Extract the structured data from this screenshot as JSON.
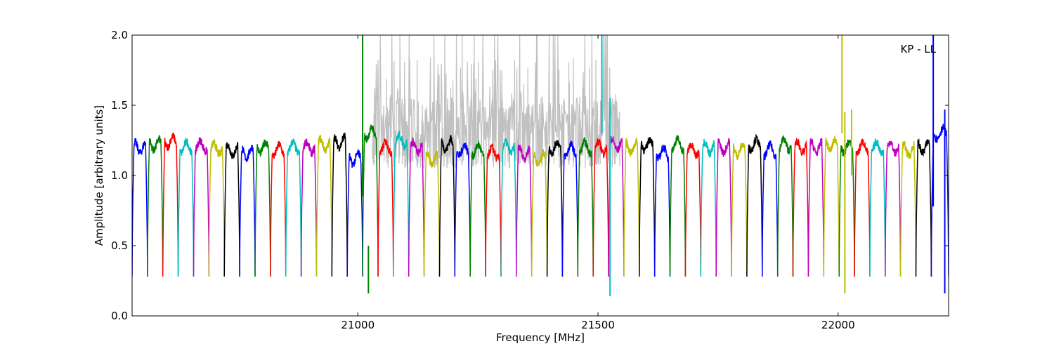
{
  "chart_data": {
    "type": "line",
    "title": "",
    "annotation": "KP - LL",
    "xlabel": "Frequency [MHz]",
    "ylabel": "Amplitude [arbitrary units]",
    "xlim": [
      20530,
      22230
    ],
    "ylim": [
      0.0,
      2.0
    ],
    "x_ticks": [
      21000,
      21500,
      22000
    ],
    "x_tick_labels": [
      "21000",
      "21500",
      "22000"
    ],
    "y_ticks": [
      0.0,
      0.5,
      1.0,
      1.5,
      2.0
    ],
    "y_tick_labels": [
      "0.0",
      "0.5",
      "1.0",
      "1.5",
      "2.0"
    ],
    "grid": false,
    "legend": "none",
    "series_colors": [
      "#0000ff",
      "#008000",
      "#ff0000",
      "#00bfbf",
      "#bf00bf",
      "#bfbf00",
      "#000000"
    ],
    "background_series_color": "#c0c0c0",
    "channel_width_mhz": 32,
    "channel_edge_value": 0.28,
    "channels": [
      {
        "x_start": 20530,
        "x_end": 20562,
        "plateau": 1.2,
        "color": "#0000ff"
      },
      {
        "x_start": 20562,
        "x_end": 20594,
        "plateau": 1.22,
        "color": "#008000"
      },
      {
        "x_start": 20594,
        "x_end": 20626,
        "plateau": 1.24,
        "color": "#ff0000"
      },
      {
        "x_start": 20626,
        "x_end": 20658,
        "plateau": 1.2,
        "color": "#00bfbf"
      },
      {
        "x_start": 20658,
        "x_end": 20690,
        "plateau": 1.21,
        "color": "#bf00bf"
      },
      {
        "x_start": 20690,
        "x_end": 20722,
        "plateau": 1.19,
        "color": "#bfbf00"
      },
      {
        "x_start": 20722,
        "x_end": 20754,
        "plateau": 1.18,
        "color": "#000000"
      },
      {
        "x_start": 20754,
        "x_end": 20786,
        "plateau": 1.16,
        "color": "#0000ff"
      },
      {
        "x_start": 20786,
        "x_end": 20818,
        "plateau": 1.2,
        "color": "#008000"
      },
      {
        "x_start": 20818,
        "x_end": 20850,
        "plateau": 1.18,
        "color": "#ff0000"
      },
      {
        "x_start": 20850,
        "x_end": 20882,
        "plateau": 1.2,
        "color": "#00bfbf"
      },
      {
        "x_start": 20882,
        "x_end": 20914,
        "plateau": 1.2,
        "color": "#bf00bf"
      },
      {
        "x_start": 20914,
        "x_end": 20946,
        "plateau": 1.22,
        "color": "#bfbf00"
      },
      {
        "x_start": 20946,
        "x_end": 20978,
        "plateau": 1.24,
        "color": "#000000"
      },
      {
        "x_start": 20978,
        "x_end": 21010,
        "plateau": 1.12,
        "color": "#0000ff"
      },
      {
        "x_start": 21010,
        "x_end": 21042,
        "plateau": 1.3,
        "color": "#008000"
      },
      {
        "x_start": 21042,
        "x_end": 21074,
        "plateau": 1.2,
        "color": "#ff0000"
      },
      {
        "x_start": 21074,
        "x_end": 21106,
        "plateau": 1.25,
        "color": "#00bfbf"
      },
      {
        "x_start": 21106,
        "x_end": 21138,
        "plateau": 1.2,
        "color": "#bf00bf"
      },
      {
        "x_start": 21138,
        "x_end": 21170,
        "plateau": 1.12,
        "color": "#bfbf00"
      },
      {
        "x_start": 21170,
        "x_end": 21202,
        "plateau": 1.22,
        "color": "#000000"
      },
      {
        "x_start": 21202,
        "x_end": 21234,
        "plateau": 1.18,
        "color": "#0000ff"
      },
      {
        "x_start": 21234,
        "x_end": 21266,
        "plateau": 1.18,
        "color": "#008000"
      },
      {
        "x_start": 21266,
        "x_end": 21298,
        "plateau": 1.16,
        "color": "#ff0000"
      },
      {
        "x_start": 21298,
        "x_end": 21330,
        "plateau": 1.2,
        "color": "#00bfbf"
      },
      {
        "x_start": 21330,
        "x_end": 21362,
        "plateau": 1.16,
        "color": "#bf00bf"
      },
      {
        "x_start": 21362,
        "x_end": 21394,
        "plateau": 1.12,
        "color": "#bfbf00"
      },
      {
        "x_start": 21394,
        "x_end": 21426,
        "plateau": 1.2,
        "color": "#000000"
      },
      {
        "x_start": 21426,
        "x_end": 21458,
        "plateau": 1.18,
        "color": "#0000ff"
      },
      {
        "x_start": 21458,
        "x_end": 21490,
        "plateau": 1.2,
        "color": "#008000"
      },
      {
        "x_start": 21490,
        "x_end": 21522,
        "plateau": 1.2,
        "color": "#ff0000"
      },
      {
        "x_start": 21522,
        "x_end": 21554,
        "plateau": 1.22,
        "color": "#bf00bf"
      },
      {
        "x_start": 21554,
        "x_end": 21586,
        "plateau": 1.2,
        "color": "#bfbf00"
      },
      {
        "x_start": 21586,
        "x_end": 21618,
        "plateau": 1.22,
        "color": "#000000"
      },
      {
        "x_start": 21618,
        "x_end": 21650,
        "plateau": 1.16,
        "color": "#0000ff"
      },
      {
        "x_start": 21650,
        "x_end": 21682,
        "plateau": 1.22,
        "color": "#008000"
      },
      {
        "x_start": 21682,
        "x_end": 21714,
        "plateau": 1.18,
        "color": "#ff0000"
      },
      {
        "x_start": 21714,
        "x_end": 21746,
        "plateau": 1.2,
        "color": "#00bfbf"
      },
      {
        "x_start": 21746,
        "x_end": 21778,
        "plateau": 1.2,
        "color": "#bf00bf"
      },
      {
        "x_start": 21778,
        "x_end": 21810,
        "plateau": 1.18,
        "color": "#bfbf00"
      },
      {
        "x_start": 21810,
        "x_end": 21842,
        "plateau": 1.22,
        "color": "#000000"
      },
      {
        "x_start": 21842,
        "x_end": 21874,
        "plateau": 1.18,
        "color": "#0000ff"
      },
      {
        "x_start": 21874,
        "x_end": 21906,
        "plateau": 1.22,
        "color": "#008000"
      },
      {
        "x_start": 21906,
        "x_end": 21938,
        "plateau": 1.2,
        "color": "#ff0000"
      },
      {
        "x_start": 21938,
        "x_end": 21970,
        "plateau": 1.2,
        "color": "#bf00bf"
      },
      {
        "x_start": 21970,
        "x_end": 22002,
        "plateau": 1.22,
        "color": "#bfbf00"
      },
      {
        "x_start": 22002,
        "x_end": 22034,
        "plateau": 1.2,
        "color": "#008000"
      },
      {
        "x_start": 22034,
        "x_end": 22066,
        "plateau": 1.2,
        "color": "#ff0000"
      },
      {
        "x_start": 22066,
        "x_end": 22098,
        "plateau": 1.2,
        "color": "#00bfbf"
      },
      {
        "x_start": 22098,
        "x_end": 22130,
        "plateau": 1.2,
        "color": "#bf00bf"
      },
      {
        "x_start": 22130,
        "x_end": 22162,
        "plateau": 1.18,
        "color": "#bfbf00"
      },
      {
        "x_start": 22162,
        "x_end": 22194,
        "plateau": 1.2,
        "color": "#000000"
      },
      {
        "x_start": 22194,
        "x_end": 22230,
        "plateau": 1.3,
        "color": "#0000ff"
      }
    ],
    "spikes": [
      {
        "x": 21010,
        "y_low": 0.85,
        "y_high": 2.0,
        "color": "#008000"
      },
      {
        "x": 21508,
        "y_low": 1.3,
        "y_high": 2.0,
        "color": "#00bfbf"
      },
      {
        "x": 21525,
        "y_low": 0.14,
        "y_high": 1.55,
        "color": "#00bfbf"
      },
      {
        "x": 22008,
        "y_low": 1.3,
        "y_high": 2.0,
        "color": "#bfbf00"
      },
      {
        "x": 22014,
        "y_low": 0.16,
        "y_high": 1.45,
        "color": "#bfbf00"
      },
      {
        "x": 22028,
        "y_low": 1.0,
        "y_high": 1.47,
        "color": "#bfbf00"
      },
      {
        "x": 22198,
        "y_low": 0.78,
        "y_high": 2.0,
        "color": "#0000ff"
      },
      {
        "x": 22222,
        "y_low": 0.16,
        "y_high": 1.47,
        "color": "#0000ff"
      },
      {
        "x": 21022,
        "y_low": 0.16,
        "y_high": 0.5,
        "color": "#008000"
      }
    ],
    "grey_region": {
      "x_start": 21030,
      "x_end": 21545,
      "y_base": 1.2,
      "y_max": 2.0
    }
  }
}
